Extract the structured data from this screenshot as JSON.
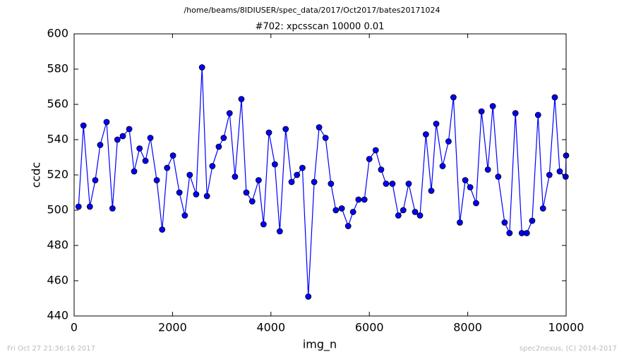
{
  "chart_data": {
    "type": "line",
    "suptitle": "/home/beams/8IDIUSER/spec_data/2017/Oct2017/bates20171024",
    "title": "#702: xpcsscan 10000 0.01",
    "xlabel": "img_n",
    "ylabel": "ccdc",
    "footer_left": "Fri Oct 27 21:36:16 2017",
    "footer_right": "spec2nexus, (C) 2014-2017",
    "x": [
      90,
      190,
      320,
      430,
      530,
      660,
      780,
      880,
      990,
      1120,
      1220,
      1330,
      1450,
      1550,
      1680,
      1790,
      1890,
      2010,
      2140,
      2250,
      2350,
      2480,
      2600,
      2700,
      2810,
      2940,
      3040,
      3160,
      3270,
      3400,
      3500,
      3620,
      3750,
      3850,
      3960,
      4080,
      4180,
      4300,
      4420,
      4530,
      4640,
      4760,
      4880,
      4980,
      5110,
      5220,
      5320,
      5440,
      5570,
      5670,
      5780,
      5900,
      6000,
      6130,
      6240,
      6340,
      6470,
      6590,
      6690,
      6800,
      6930,
      7030,
      7150,
      7260,
      7360,
      7490,
      7610,
      7710,
      7840,
      7950,
      8050,
      8170,
      8280,
      8410,
      8510,
      8620,
      8750,
      8850,
      8970,
      9100,
      9200,
      9310,
      9430,
      9530,
      9660,
      9770,
      9870,
      9990,
      10000
    ],
    "series": [
      {
        "name": "ccdc",
        "color": "#0000ff",
        "values": [
          502,
          548,
          502,
          517,
          537,
          550,
          501,
          540,
          542,
          546,
          522,
          535,
          528,
          541,
          517,
          489,
          524,
          531,
          510,
          497,
          520,
          509,
          581,
          508,
          525,
          536,
          541,
          555,
          519,
          563,
          510,
          505,
          517,
          492,
          544,
          526,
          488,
          546,
          516,
          520,
          524,
          451,
          516,
          547,
          541,
          515,
          500,
          501,
          491,
          499,
          506,
          506,
          529,
          534,
          523,
          515,
          515,
          497,
          500,
          515,
          499,
          497,
          543,
          511,
          549,
          525,
          539,
          564,
          493,
          517,
          513,
          504,
          556,
          523,
          559,
          519,
          493,
          487,
          555,
          487,
          487,
          494,
          554,
          501,
          520,
          564,
          522,
          519,
          531
        ]
      }
    ],
    "xlim": [
      0,
      10000
    ],
    "xticks": [
      0,
      2000,
      4000,
      6000,
      8000,
      10000
    ],
    "ylim": [
      440,
      600
    ],
    "yticks": [
      440,
      460,
      480,
      500,
      520,
      540,
      560,
      580,
      600
    ],
    "grid": false
  }
}
